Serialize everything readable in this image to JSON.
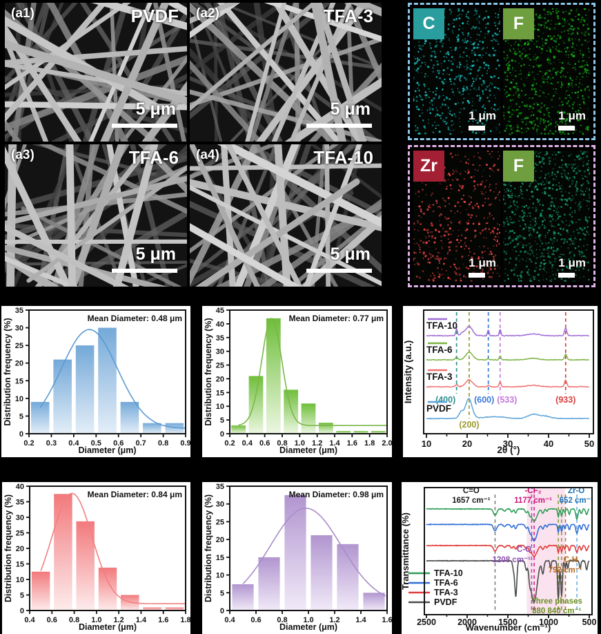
{
  "figure": {
    "sem_panels": [
      {
        "id": "(a1)",
        "label": "PVDF",
        "scale": "5 μm"
      },
      {
        "id": "(a2)",
        "label": "TFA-3",
        "scale": "5 μm"
      },
      {
        "id": "(a3)",
        "label": "TFA-6",
        "scale": "5 μm"
      },
      {
        "id": "(a4)",
        "label": "TFA-10",
        "scale": "5 μm"
      }
    ],
    "eds": {
      "groups": [
        {
          "border_color": "#8ec6e8",
          "maps": [
            {
              "element": "C",
              "chip_color": "#2a9d9f",
              "dot_color": "#19bdbd",
              "dots": 620,
              "scale": "1 μm"
            },
            {
              "element": "F",
              "chip_color": "#6f9e3f",
              "dot_color": "#18a818",
              "dots": 780,
              "scale": "1 μm"
            }
          ]
        },
        {
          "border_color": "#e0b3e8",
          "maps": [
            {
              "element": "Zr",
              "chip_color": "#a31f34",
              "dot_color": "#ef4444",
              "dots": 500,
              "scale": "1 μm"
            },
            {
              "element": "F",
              "chip_color": "#6f9e3f",
              "dot_color": "#16986a",
              "dots": 880,
              "scale": "1 μm"
            }
          ]
        }
      ]
    }
  },
  "chart_data": [
    {
      "panel": "hist-pvdf",
      "type": "bar",
      "title": "Mean Diameter: 0.48 μm",
      "xlabel": "Diameter (μm)",
      "ylabel": "Distribution frequency (%)",
      "xlim": [
        0.2,
        0.9
      ],
      "xtick_step": 0.1,
      "ylim": [
        0,
        35
      ],
      "ytick_step": 5,
      "bin_centers": [
        0.25,
        0.35,
        0.45,
        0.55,
        0.65,
        0.75,
        0.85
      ],
      "values": [
        9,
        21,
        25,
        30,
        9,
        3,
        3
      ],
      "colors": {
        "top": "#74a9d8",
        "bottom": "#e4eef8",
        "line": "#5b9ad2"
      },
      "fit": {
        "mean": 0.47,
        "sigma": 0.125,
        "amp": 28,
        "base": 1.5
      }
    },
    {
      "panel": "hist-tfa3",
      "type": "bar",
      "title": "Mean Diameter: 0.77 μm",
      "xlabel": "Diameter (μm)",
      "ylabel": "Distribution frequency (%)",
      "xlim": [
        0.2,
        2.0
      ],
      "xtick_step": 0.2,
      "ylim": [
        0,
        45
      ],
      "ytick_step": 5,
      "bin_centers": [
        0.3,
        0.5,
        0.7,
        0.9,
        1.1,
        1.3,
        1.5,
        1.7,
        1.9
      ],
      "values": [
        3,
        21,
        42,
        16,
        11,
        4,
        1,
        1,
        1
      ],
      "colors": {
        "top": "#6fbe3a",
        "bottom": "#ecf7e2",
        "line": "#7ab648"
      },
      "fit": {
        "mean": 0.68,
        "sigma": 0.115,
        "amp": 39,
        "base": 3
      }
    },
    {
      "panel": "hist-tfa6",
      "type": "bar",
      "title": "Mean Diameter: 0.84 μm",
      "xlabel": "Diameter (μm)",
      "ylabel": "Distribution frequency (%)",
      "xlim": [
        0.4,
        1.8
      ],
      "xtick_step": 0.2,
      "ylim": [
        0,
        40
      ],
      "ytick_step": 5,
      "bin_centers": [
        0.5,
        0.7,
        0.9,
        1.1,
        1.3,
        1.5,
        1.7
      ],
      "values": [
        12.5,
        37.5,
        28.7,
        13.8,
        5,
        1,
        1
      ],
      "colors": {
        "top": "#f2797c",
        "bottom": "#fdecec",
        "line": "#ee8082"
      },
      "fit": {
        "mean": 0.78,
        "sigma": 0.18,
        "amp": 35.5,
        "base": 2.2
      }
    },
    {
      "panel": "hist-tfa10",
      "type": "bar",
      "title": "Mean Diameter: 0.98 μm",
      "xlabel": "Diameter (μm)",
      "ylabel": "Distribution frequency (%)",
      "xlim": [
        0.4,
        1.6
      ],
      "xtick_step": 0.2,
      "ylim": [
        0,
        35
      ],
      "ytick_step": 5,
      "bin_centers": [
        0.5,
        0.7,
        0.9,
        1.1,
        1.3,
        1.5
      ],
      "values": [
        7.4,
        15,
        32.5,
        21.2,
        18.7,
        5
      ],
      "colors": {
        "top": "#b195cf",
        "bottom": "#f1eaf8",
        "line": "#a98cc9"
      },
      "fit": {
        "mean": 0.98,
        "sigma": 0.27,
        "amp": 26.8,
        "base": 2
      }
    },
    {
      "panel": "xrd",
      "type": "line",
      "xlabel": "2θ (°)",
      "ylabel": "Intensity (a.u.)",
      "xlim": [
        10,
        50
      ],
      "xticks": [
        10,
        20,
        30,
        40,
        50
      ],
      "series": [
        {
          "name": "TFA-10",
          "color": "#a06cd5",
          "baseline": 0.207,
          "peaks": [
            [
              17.4,
              0.055,
              0.22
            ],
            [
              18.9,
              0.02,
              0.5
            ],
            [
              20.5,
              0.075,
              0.8
            ],
            [
              25.2,
              0.05,
              0.18
            ],
            [
              28.1,
              0.05,
              0.2
            ],
            [
              36.2,
              0.015,
              1.4
            ],
            [
              44.2,
              0.065,
              0.28
            ]
          ]
        },
        {
          "name": "TFA-6",
          "color": "#7cb342",
          "baseline": 0.402,
          "peaks": [
            [
              17.4,
              0.02,
              0.3
            ],
            [
              20.5,
              0.06,
              0.85
            ],
            [
              25.2,
              0.012,
              0.2
            ],
            [
              28.1,
              0.03,
              0.22
            ],
            [
              36.2,
              0.012,
              1.4
            ],
            [
              44.2,
              0.045,
              0.28
            ]
          ]
        },
        {
          "name": "TFA-3",
          "color": "#ef7070",
          "baseline": 0.62,
          "peaks": [
            [
              17.4,
              0.02,
              0.3
            ],
            [
              20.5,
              0.055,
              0.85
            ],
            [
              25.2,
              0.015,
              0.2
            ],
            [
              28.1,
              0.04,
              0.22
            ],
            [
              36.2,
              0.012,
              1.4
            ],
            [
              44.2,
              0.055,
              0.28
            ]
          ]
        },
        {
          "name": "PVDF",
          "color": "#5ba3d9",
          "baseline": 0.877,
          "peaks": [
            [
              18.5,
              0.05,
              0.55
            ],
            [
              20.4,
              0.16,
              0.8
            ],
            [
              26.8,
              0.015,
              2.5
            ],
            [
              36.2,
              0.035,
              1.2
            ],
            [
              39.2,
              0.02,
              1.2
            ]
          ]
        }
      ],
      "ref_lines": [
        {
          "x": 17.4,
          "color": "#2e8f8f",
          "label": "(400)",
          "dx": -16,
          "row": 1
        },
        {
          "x": 20.5,
          "color": "#9a9a2c",
          "label": "(200)",
          "dx": 0,
          "row": 2
        },
        {
          "x": 25.2,
          "color": "#3b78d8",
          "label": "(600)",
          "dx": -6,
          "row": 1
        },
        {
          "x": 28.1,
          "color": "#c478d8",
          "label": "(533)",
          "dx": 10,
          "row": 1
        },
        {
          "x": 44.2,
          "color": "#d84040",
          "label": "(933)",
          "dx": 0,
          "row": 1
        }
      ]
    },
    {
      "panel": "ftir",
      "type": "line",
      "xlabel": "Wavenumber (cm⁻¹)",
      "ylabel": "Transmittance (%)",
      "xlim": [
        2500,
        500
      ],
      "xticks": [
        2500,
        2000,
        1500,
        1000,
        500
      ],
      "band": {
        "from": 1268,
        "to": 798,
        "color": "#f8d9ea"
      },
      "series": [
        {
          "name": "TFA-10",
          "color": "#2e9e57",
          "baseline": 0.168,
          "dips": [
            [
              1657,
              0.05,
              20
            ],
            [
              1540,
              0.018,
              14
            ],
            [
              1452,
              0.025,
              12
            ],
            [
              1404,
              0.032,
              12
            ],
            [
              1275,
              0.028,
              13
            ],
            [
              1232,
              0.032,
              12
            ],
            [
              1177,
              0.095,
              34
            ],
            [
              1070,
              0.035,
              13
            ],
            [
              1020,
              0.02,
              10
            ],
            [
              880,
              0.06,
              9
            ],
            [
              840,
              0.055,
              9
            ],
            [
              800,
              0.03,
              8
            ],
            [
              745,
              0.042,
              10
            ],
            [
              652,
              0.08,
              13
            ],
            [
              598,
              0.038,
              10
            ],
            [
              532,
              0.045,
              12
            ]
          ]
        },
        {
          "name": "TFA-6",
          "color": "#2f6fd6",
          "baseline": 0.29,
          "dips": [
            [
              1657,
              0.05,
              20
            ],
            [
              1540,
              0.018,
              14
            ],
            [
              1452,
              0.025,
              12
            ],
            [
              1404,
              0.032,
              12
            ],
            [
              1275,
              0.028,
              13
            ],
            [
              1232,
              0.032,
              12
            ],
            [
              1177,
              0.13,
              34
            ],
            [
              1070,
              0.035,
              13
            ],
            [
              1020,
              0.02,
              10
            ],
            [
              880,
              0.06,
              9
            ],
            [
              840,
              0.055,
              9
            ],
            [
              800,
              0.03,
              8
            ],
            [
              745,
              0.042,
              10
            ],
            [
              652,
              0.07,
              13
            ],
            [
              598,
              0.038,
              10
            ],
            [
              532,
              0.045,
              12
            ]
          ]
        },
        {
          "name": "TFA-3",
          "color": "#e23b3b",
          "baseline": 0.456,
          "dips": [
            [
              1657,
              0.045,
              20
            ],
            [
              1540,
              0.015,
              14
            ],
            [
              1452,
              0.022,
              12
            ],
            [
              1404,
              0.028,
              12
            ],
            [
              1275,
              0.025,
              13
            ],
            [
              1232,
              0.028,
              12
            ],
            [
              1177,
              0.085,
              34
            ],
            [
              1070,
              0.03,
              13
            ],
            [
              1020,
              0.018,
              10
            ],
            [
              880,
              0.055,
              9
            ],
            [
              840,
              0.05,
              9
            ],
            [
              800,
              0.028,
              8
            ],
            [
              745,
              0.04,
              10
            ],
            [
              652,
              0.055,
              13
            ],
            [
              598,
              0.035,
              10
            ],
            [
              532,
              0.04,
              12
            ]
          ]
        },
        {
          "name": "PVDF",
          "color": "#4a4a4a",
          "baseline": 0.576,
          "dips": [
            [
              1430,
              0.07,
              11
            ],
            [
              1402,
              0.28,
              12
            ],
            [
              1275,
              0.06,
              11
            ],
            [
              1232,
              0.07,
              11
            ],
            [
              1180,
              0.33,
              38
            ],
            [
              1070,
              0.1,
              13
            ],
            [
              976,
              0.06,
              8
            ],
            [
              880,
              0.3,
              10
            ],
            [
              840,
              0.28,
              10
            ],
            [
              795,
              0.06,
              8
            ],
            [
              763,
              0.06,
              8
            ],
            [
              612,
              0.06,
              9
            ],
            [
              532,
              0.07,
              11
            ]
          ]
        }
      ],
      "ref_lines": [
        {
          "x": 1657,
          "color": "#777777"
        },
        {
          "x": 1208,
          "color": "#9055b8"
        },
        {
          "x": 1177,
          "color": "#d6197f"
        },
        {
          "x": 880,
          "color": "#7c9a33"
        },
        {
          "x": 840,
          "color": "#7c9a33"
        },
        {
          "x": 792,
          "color": "#bf6b2a"
        },
        {
          "x": 652,
          "color": "#62a8dc"
        }
      ],
      "annotations": [
        {
          "x": 1950,
          "y": 16,
          "color": "#1a1a1a",
          "lines": [
            "C=O",
            "1657 cm⁻¹"
          ]
        },
        {
          "x": 1190,
          "y": 16,
          "color": "#cc1177",
          "lines": [
            "-CF₂",
            "1177 cm⁻¹"
          ]
        },
        {
          "x": 660,
          "y": 16,
          "color": "#1a6fb5",
          "lines": [
            "Zr-O",
            "652 cm⁻¹"
          ]
        },
        {
          "x": 1300,
          "y": 101,
          "color": "#8a4fb0",
          "lines": [
            "C-O"
          ]
        },
        {
          "x": 1455,
          "y": 116,
          "color": "#8a4fb0",
          "lines": [
            "1208 cm⁻¹"
          ]
        },
        {
          "x": 730,
          "y": 116,
          "color": "#b5651d",
          "lines": [
            "C-H"
          ]
        },
        {
          "x": 795,
          "y": 131,
          "color": "#b5651d",
          "lines": [
            "792 cm⁻¹"
          ]
        },
        {
          "x": 900,
          "y": 176,
          "color": "#6b8e23",
          "lines": [
            "Three phases",
            "880 840 cm⁻¹"
          ]
        }
      ],
      "legend": [
        {
          "label": "TFA-10",
          "color": "#2e9e57"
        },
        {
          "label": "TFA-6",
          "color": "#2f6fd6"
        },
        {
          "label": "TFA-3",
          "color": "#e23b3b"
        },
        {
          "label": "PVDF",
          "color": "#4a4a4a"
        }
      ]
    }
  ]
}
